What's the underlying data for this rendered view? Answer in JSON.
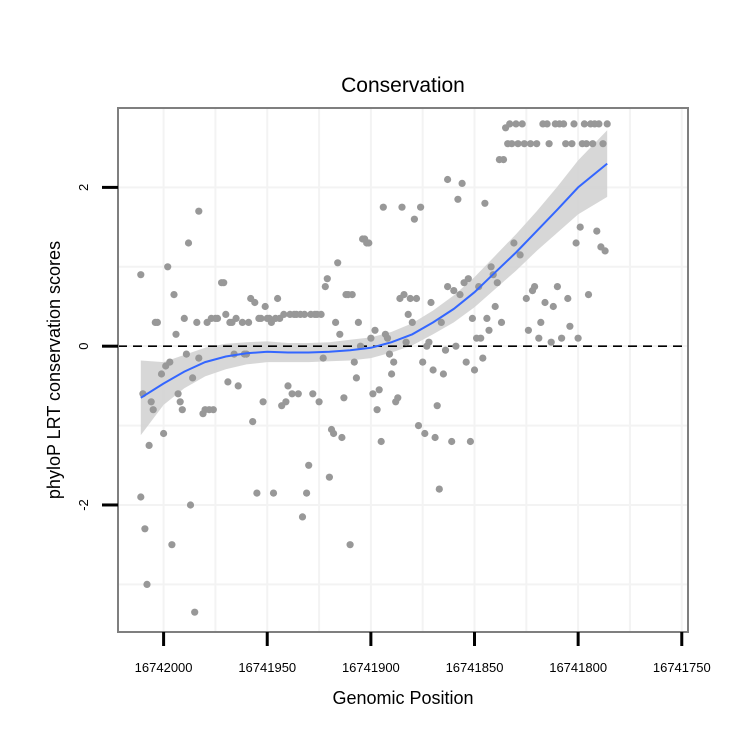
{
  "chart_data": {
    "type": "scatter",
    "title": "Conservation",
    "xlabel": "Genomic Position",
    "ylabel": "phyloP LRT conservation scores",
    "x_reversed": true,
    "xlim": [
      16742022,
      16741747
    ],
    "ylim": [
      -3.6,
      3.0
    ],
    "x_ticks": [
      16742000,
      16741950,
      16741900,
      16741850,
      16741800,
      16741750
    ],
    "x_tick_labels": [
      "16742000",
      "16741950",
      "16741900",
      "16741850",
      "16741800",
      "16741750"
    ],
    "y_ticks": [
      -2,
      0,
      2
    ],
    "y_tick_labels": [
      "-2",
      "0",
      "2"
    ],
    "reference_line": 0,
    "colors": {
      "points": "#989898",
      "smooth": "#3366ff",
      "band": "#d3d3d3",
      "border": "#7f7f7f"
    },
    "points": [
      [
        16742011,
        -1.9
      ],
      [
        16742011,
        0.9
      ],
      [
        16742010,
        -0.6
      ],
      [
        16742009,
        -2.3
      ],
      [
        16742008,
        -3.0
      ],
      [
        16742007,
        -1.25
      ],
      [
        16742006,
        -0.7
      ],
      [
        16742005,
        -0.8
      ],
      [
        16742004,
        0.3
      ],
      [
        16742003,
        0.3
      ],
      [
        16742001,
        -0.35
      ],
      [
        16742000,
        -1.1
      ],
      [
        16741999,
        -0.25
      ],
      [
        16741998,
        1.0
      ],
      [
        16741997,
        -0.2
      ],
      [
        16741996,
        -2.5
      ],
      [
        16741995,
        0.65
      ],
      [
        16741994,
        0.15
      ],
      [
        16741993,
        -0.6
      ],
      [
        16741992,
        -0.7
      ],
      [
        16741991,
        -0.8
      ],
      [
        16741990,
        0.35
      ],
      [
        16741989,
        -0.1
      ],
      [
        16741988,
        1.3
      ],
      [
        16741987,
        -2.0
      ],
      [
        16741986,
        -0.4
      ],
      [
        16741985,
        -3.35
      ],
      [
        16741984,
        0.3
      ],
      [
        16741983,
        1.7
      ],
      [
        16741983,
        -0.15
      ],
      [
        16741981,
        -0.85
      ],
      [
        16741980,
        -0.8
      ],
      [
        16741979,
        0.3
      ],
      [
        16741978,
        -0.8
      ],
      [
        16741977,
        0.35
      ],
      [
        16741976,
        -0.8
      ],
      [
        16741975,
        0.35
      ],
      [
        16741974,
        0.35
      ],
      [
        16741972,
        0.8
      ],
      [
        16741971,
        0.8
      ],
      [
        16741970,
        0.4
      ],
      [
        16741969,
        -0.45
      ],
      [
        16741968,
        0.3
      ],
      [
        16741967,
        0.3
      ],
      [
        16741966,
        -0.1
      ],
      [
        16741965,
        0.35
      ],
      [
        16741964,
        -0.5
      ],
      [
        16741962,
        0.3
      ],
      [
        16741961,
        -0.1
      ],
      [
        16741960,
        -0.1
      ],
      [
        16741959,
        0.3
      ],
      [
        16741958,
        0.6
      ],
      [
        16741957,
        -0.95
      ],
      [
        16741956,
        0.55
      ],
      [
        16741955,
        -1.85
      ],
      [
        16741954,
        0.35
      ],
      [
        16741953,
        0.35
      ],
      [
        16741952,
        -0.7
      ],
      [
        16741951,
        0.5
      ],
      [
        16741950,
        0.35
      ],
      [
        16741949,
        0.35
      ],
      [
        16741948,
        0.3
      ],
      [
        16741947,
        -1.85
      ],
      [
        16741946,
        0.35
      ],
      [
        16741945,
        0.6
      ],
      [
        16741944,
        0.35
      ],
      [
        16741943,
        -0.75
      ],
      [
        16741942,
        0.4
      ],
      [
        16741941,
        -0.7
      ],
      [
        16741940,
        -0.5
      ],
      [
        16741939,
        0.4
      ],
      [
        16741938,
        -0.6
      ],
      [
        16741937,
        0.4
      ],
      [
        16741936,
        0.4
      ],
      [
        16741935,
        -0.6
      ],
      [
        16741934,
        0.4
      ],
      [
        16741933,
        -2.15
      ],
      [
        16741932,
        0.4
      ],
      [
        16741931,
        -1.85
      ],
      [
        16741930,
        -1.5
      ],
      [
        16741929,
        0.4
      ],
      [
        16741928,
        -0.6
      ],
      [
        16741927,
        0.4
      ],
      [
        16741926,
        0.4
      ],
      [
        16741925,
        -0.7
      ],
      [
        16741924,
        0.4
      ],
      [
        16741923,
        -0.15
      ],
      [
        16741922,
        0.75
      ],
      [
        16741921,
        0.85
      ],
      [
        16741920,
        -1.65
      ],
      [
        16741919,
        -1.05
      ],
      [
        16741918,
        -1.1
      ],
      [
        16741917,
        0.3
      ],
      [
        16741916,
        1.05
      ],
      [
        16741915,
        0.15
      ],
      [
        16741914,
        -1.15
      ],
      [
        16741913,
        -0.65
      ],
      [
        16741912,
        0.65
      ],
      [
        16741911,
        0.65
      ],
      [
        16741910,
        -2.5
      ],
      [
        16741909,
        0.65
      ],
      [
        16741908,
        -0.2
      ],
      [
        16741907,
        -0.4
      ],
      [
        16741906,
        0.3
      ],
      [
        16741905,
        0.0
      ],
      [
        16741904,
        1.35
      ],
      [
        16741903,
        1.35
      ],
      [
        16741902,
        1.3
      ],
      [
        16741901,
        1.3
      ],
      [
        16741900,
        0.1
      ],
      [
        16741899,
        -0.6
      ],
      [
        16741898,
        0.2
      ],
      [
        16741897,
        -0.8
      ],
      [
        16741896,
        -0.55
      ],
      [
        16741895,
        -1.2
      ],
      [
        16741894,
        1.75
      ],
      [
        16741893,
        0.15
      ],
      [
        16741892,
        0.1
      ],
      [
        16741891,
        -0.1
      ],
      [
        16741890,
        -0.35
      ],
      [
        16741889,
        -0.2
      ],
      [
        16741888,
        -0.7
      ],
      [
        16741887,
        -0.65
      ],
      [
        16741886,
        0.6
      ],
      [
        16741885,
        1.75
      ],
      [
        16741884,
        0.65
      ],
      [
        16741883,
        0.05
      ],
      [
        16741882,
        0.4
      ],
      [
        16741881,
        0.6
      ],
      [
        16741880,
        0.3
      ],
      [
        16741879,
        1.6
      ],
      [
        16741878,
        0.6
      ],
      [
        16741877,
        -1.0
      ],
      [
        16741876,
        1.75
      ],
      [
        16741875,
        -0.2
      ],
      [
        16741874,
        -1.1
      ],
      [
        16741873,
        0.0
      ],
      [
        16741872,
        0.05
      ],
      [
        16741871,
        0.55
      ],
      [
        16741870,
        -0.3
      ],
      [
        16741869,
        -1.15
      ],
      [
        16741868,
        -0.75
      ],
      [
        16741867,
        -1.8
      ],
      [
        16741866,
        0.3
      ],
      [
        16741865,
        -0.35
      ],
      [
        16741864,
        -0.05
      ],
      [
        16741863,
        2.1
      ],
      [
        16741863,
        0.75
      ],
      [
        16741861,
        -1.2
      ],
      [
        16741860,
        0.7
      ],
      [
        16741859,
        0.0
      ],
      [
        16741858,
        1.85
      ],
      [
        16741857,
        0.65
      ],
      [
        16741856,
        2.05
      ],
      [
        16741855,
        0.8
      ],
      [
        16741854,
        -0.2
      ],
      [
        16741853,
        0.85
      ],
      [
        16741852,
        -1.2
      ],
      [
        16741851,
        0.35
      ],
      [
        16741850,
        -0.3
      ],
      [
        16741849,
        0.1
      ],
      [
        16741848,
        0.75
      ],
      [
        16741847,
        0.1
      ],
      [
        16741846,
        -0.15
      ],
      [
        16741845,
        1.8
      ],
      [
        16741844,
        0.35
      ],
      [
        16741843,
        0.2
      ],
      [
        16741842,
        1.0
      ],
      [
        16741841,
        0.9
      ],
      [
        16741840,
        0.5
      ],
      [
        16741839,
        0.8
      ],
      [
        16741838,
        2.35
      ],
      [
        16741837,
        0.3
      ],
      [
        16741836,
        2.35
      ],
      [
        16741835,
        2.75
      ],
      [
        16741834,
        2.55
      ],
      [
        16741833,
        2.8
      ],
      [
        16741832,
        2.55
      ],
      [
        16741831,
        1.3
      ],
      [
        16741830,
        2.8
      ],
      [
        16741829,
        2.55
      ],
      [
        16741828,
        1.15
      ],
      [
        16741827,
        2.8
      ],
      [
        16741826,
        2.55
      ],
      [
        16741825,
        0.6
      ],
      [
        16741824,
        0.2
      ],
      [
        16741823,
        2.55
      ],
      [
        16741822,
        0.7
      ],
      [
        16741821,
        0.75
      ],
      [
        16741820,
        2.55
      ],
      [
        16741819,
        0.1
      ],
      [
        16741818,
        0.3
      ],
      [
        16741817,
        2.8
      ],
      [
        16741816,
        0.55
      ],
      [
        16741815,
        2.8
      ],
      [
        16741814,
        2.55
      ],
      [
        16741813,
        0.05
      ],
      [
        16741812,
        0.5
      ],
      [
        16741811,
        2.8
      ],
      [
        16741810,
        0.75
      ],
      [
        16741809,
        2.8
      ],
      [
        16741808,
        0.1
      ],
      [
        16741807,
        2.8
      ],
      [
        16741806,
        2.55
      ],
      [
        16741805,
        0.6
      ],
      [
        16741804,
        0.25
      ],
      [
        16741803,
        2.55
      ],
      [
        16741802,
        2.8
      ],
      [
        16741801,
        1.3
      ],
      [
        16741800,
        0.1
      ],
      [
        16741799,
        1.5
      ],
      [
        16741798,
        2.55
      ],
      [
        16741797,
        2.8
      ],
      [
        16741796,
        2.55
      ],
      [
        16741795,
        0.65
      ],
      [
        16741794,
        2.8
      ],
      [
        16741793,
        2.55
      ],
      [
        16741792,
        2.8
      ],
      [
        16741791,
        1.45
      ],
      [
        16741790,
        2.8
      ],
      [
        16741789,
        1.25
      ],
      [
        16741788,
        2.55
      ],
      [
        16741787,
        1.2
      ],
      [
        16741786,
        2.8
      ]
    ],
    "smooth_line": {
      "method": "loess",
      "points": [
        [
          16742011,
          -0.65
        ],
        [
          16742000,
          -0.47
        ],
        [
          16741990,
          -0.32
        ],
        [
          16741980,
          -0.2
        ],
        [
          16741970,
          -0.13
        ],
        [
          16741960,
          -0.09
        ],
        [
          16741950,
          -0.07
        ],
        [
          16741940,
          -0.08
        ],
        [
          16741930,
          -0.08
        ],
        [
          16741920,
          -0.07
        ],
        [
          16741910,
          -0.05
        ],
        [
          16741900,
          -0.02
        ],
        [
          16741890,
          0.05
        ],
        [
          16741880,
          0.15
        ],
        [
          16741870,
          0.3
        ],
        [
          16741860,
          0.47
        ],
        [
          16741850,
          0.68
        ],
        [
          16741840,
          0.93
        ],
        [
          16741830,
          1.18
        ],
        [
          16741820,
          1.45
        ],
        [
          16741810,
          1.72
        ],
        [
          16741800,
          2.0
        ],
        [
          16741786,
          2.3
        ]
      ],
      "ci_lower": [
        -1.12,
        -0.74,
        -0.53,
        -0.38,
        -0.29,
        -0.23,
        -0.2,
        -0.2,
        -0.2,
        -0.19,
        -0.18,
        -0.15,
        -0.08,
        0.01,
        0.15,
        0.3,
        0.49,
        0.72,
        0.95,
        1.2,
        1.43,
        1.66,
        1.88
      ],
      "ci_upper": [
        -0.18,
        -0.2,
        -0.11,
        -0.02,
        0.03,
        0.05,
        0.06,
        0.04,
        0.04,
        0.05,
        0.08,
        0.11,
        0.18,
        0.29,
        0.45,
        0.64,
        0.87,
        1.14,
        1.41,
        1.7,
        2.01,
        2.34,
        2.72
      ]
    }
  }
}
